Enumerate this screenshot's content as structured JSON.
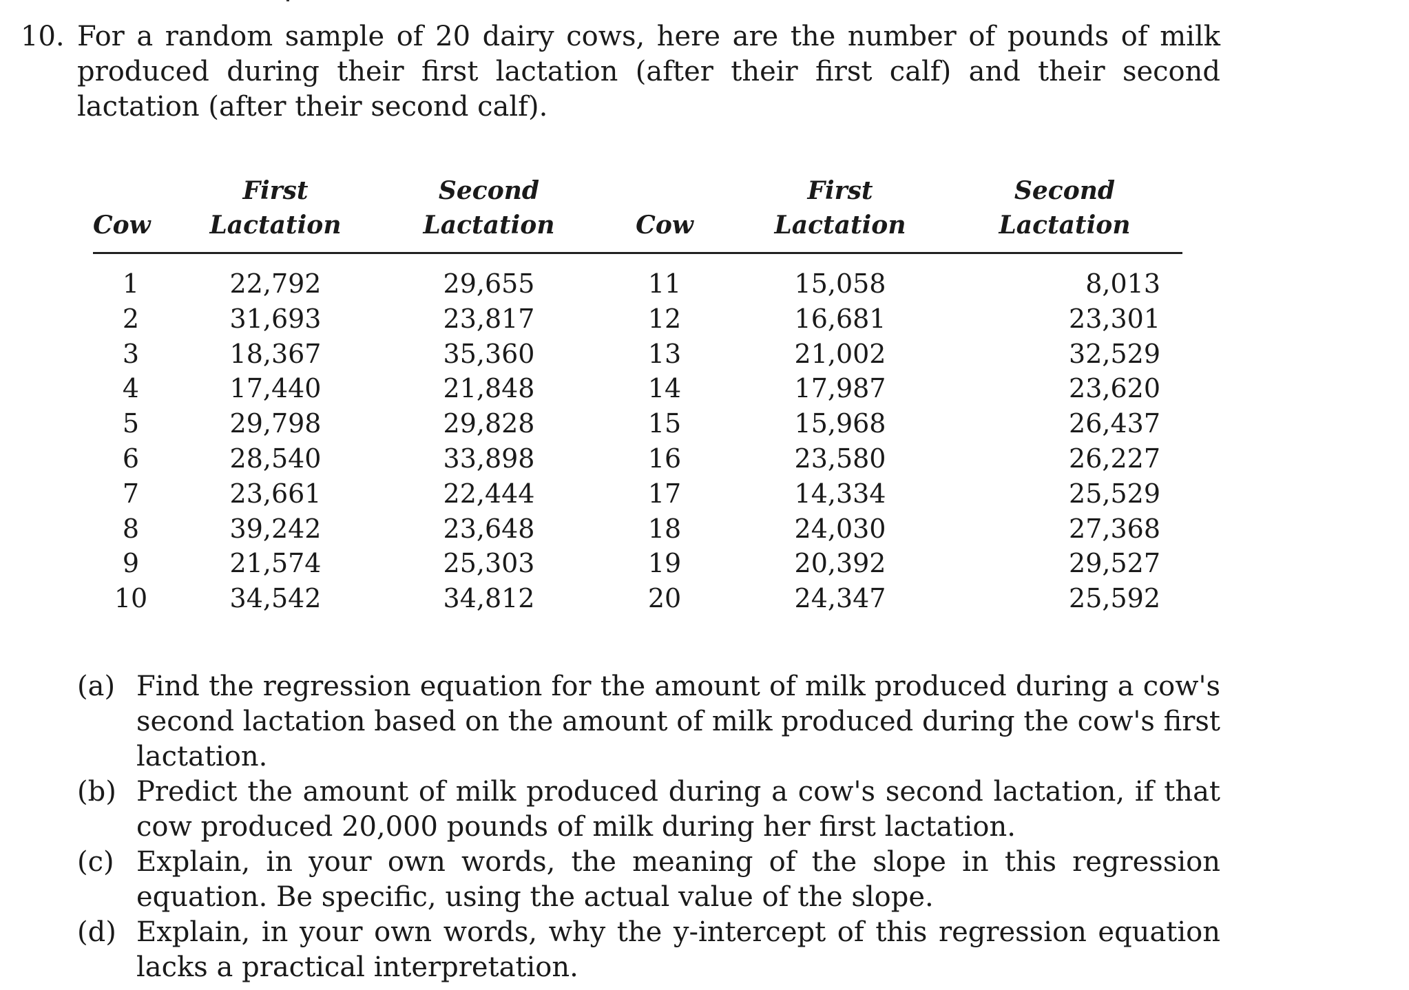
{
  "problem": {
    "number": "10.",
    "text": "For a random sample of 20 dairy cows, here are the number of pounds of milk produced during their first lactation (after their first calf) and their second lactation (after their second calf)."
  },
  "table": {
    "headers": {
      "cow": "Cow",
      "first_l1": "First",
      "first_l2": "Lactation",
      "second_l1": "Second",
      "second_l2": "Lactation"
    },
    "rows": [
      [
        "1",
        "22,792",
        "29,655",
        "11",
        "15,058",
        "8,013"
      ],
      [
        "2",
        "31,693",
        "23,817",
        "12",
        "16,681",
        "23,301"
      ],
      [
        "3",
        "18,367",
        "35,360",
        "13",
        "21,002",
        "32,529"
      ],
      [
        "4",
        "17,440",
        "21,848",
        "14",
        "17,987",
        "23,620"
      ],
      [
        "5",
        "29,798",
        "29,828",
        "15",
        "15,968",
        "26,437"
      ],
      [
        "6",
        "28,540",
        "33,898",
        "16",
        "23,580",
        "26,227"
      ],
      [
        "7",
        "23,661",
        "22,444",
        "17",
        "14,334",
        "25,529"
      ],
      [
        "8",
        "39,242",
        "23,648",
        "18",
        "24,030",
        "27,368"
      ],
      [
        "9",
        "21,574",
        "25,303",
        "19",
        "20,392",
        "29,527"
      ],
      [
        "10",
        "34,542",
        "34,812",
        "20",
        "24,347",
        "25,592"
      ]
    ]
  },
  "parts": [
    {
      "label": "(a)",
      "text": "Find the regression equation for the amount of milk produced during a cow's second lactation based on the amount of milk produced during the cow's first lactation."
    },
    {
      "label": "(b)",
      "text": "Predict the amount of milk produced during a cow's second lactation, if that cow produced 20,000 pounds of milk during her first lactation."
    },
    {
      "label": "(c)",
      "text": "Explain, in your own words, the meaning of the slope in this regression equation. Be specific, using the actual value of the slope."
    },
    {
      "label": "(d)",
      "text": "Explain, in your own words, why the y-intercept of this regression equation lacks a practical interpretation."
    }
  ]
}
